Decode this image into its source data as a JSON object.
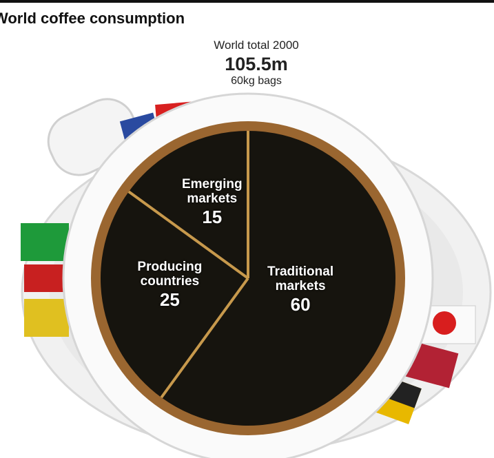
{
  "chart_data": {
    "type": "pie",
    "title": "World coffee consumption",
    "annotations": [
      "World total 2000",
      "105.5m",
      "60kg bags"
    ],
    "categories": [
      "Traditional markets",
      "Producing countries",
      "Emerging markets"
    ],
    "values": [
      60,
      25,
      15
    ],
    "colors": [
      "#16140e",
      "#16140e",
      "#16140e"
    ]
  }
}
